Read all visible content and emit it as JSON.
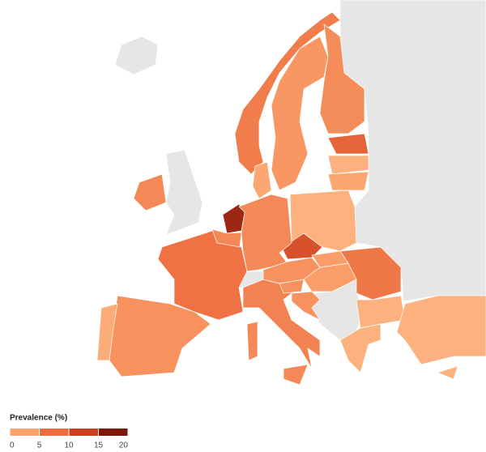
{
  "chart_data": {
    "type": "choropleth",
    "legend_title": "Prevalence (%)",
    "xlim": [
      0,
      20
    ],
    "xticks": [
      0,
      5,
      10,
      15,
      20
    ],
    "colors": [
      "#fdd3ab",
      "#fba26c",
      "#ec6d3f",
      "#c9401f",
      "#7e160a"
    ],
    "missing_color": "#e6e6e6",
    "values": [
      18,
      13,
      11,
      9.5,
      8.5,
      6,
      7,
      7.5,
      8,
      6.5,
      4,
      7.5,
      3.5,
      6.5,
      5.5,
      9,
      3.5,
      3.5,
      3.5,
      4.5,
      7.5,
      3.5,
      4.5,
      6.5,
      5.5,
      6.5,
      7.5,
      7.5,
      3.5
    ]
  }
}
